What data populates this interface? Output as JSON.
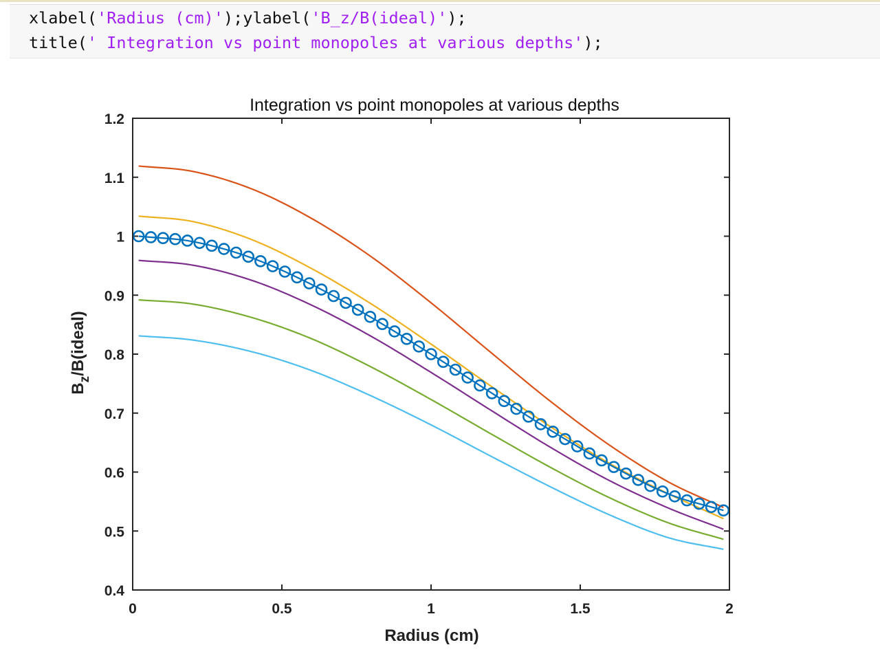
{
  "code": {
    "line1": [
      {
        "t": "xlabel(",
        "s": false
      },
      {
        "t": "'Radius (cm)'",
        "s": true
      },
      {
        "t": ");ylabel(",
        "s": false
      },
      {
        "t": "'B_z/B(ideal)'",
        "s": true
      },
      {
        "t": ");",
        "s": false
      }
    ],
    "line2": [
      {
        "t": "title(",
        "s": false
      },
      {
        "t": "' Integration vs point monopoles at various depths'",
        "s": true
      },
      {
        "t": ");",
        "s": false
      }
    ]
  },
  "colors": {
    "code_text": "#111111",
    "code_string": "#a020f0",
    "axes": "#262626"
  },
  "chart_data": {
    "type": "line",
    "title": "Integration vs point monopoles at various depths",
    "xlabel": "Radius (cm)",
    "ylabel_main": "B",
    "ylabel_sub": "z",
    "ylabel_rest": "/B(ideal)",
    "xlim": [
      0,
      2
    ],
    "ylim": [
      0.4,
      1.2
    ],
    "xticks": [
      0,
      0.5,
      1,
      1.5,
      2
    ],
    "xtick_labels": [
      "0",
      "0.5",
      "1",
      "1.5",
      "2"
    ],
    "yticks": [
      0.4,
      0.5,
      0.6,
      0.7,
      0.8,
      0.9,
      1.0,
      1.1,
      1.2
    ],
    "ytick_labels": [
      "0.4",
      "0.5",
      "0.6",
      "0.7",
      "0.8",
      "0.9",
      "1",
      "1.1",
      "1.2"
    ],
    "grid": false,
    "x": [
      0.02,
      0.2,
      0.4,
      0.6,
      0.8,
      1.0,
      1.2,
      1.4,
      1.6,
      1.8,
      1.98
    ],
    "series": [
      {
        "color": "#d95319",
        "values": [
          1.119,
          1.11,
          1.08,
          1.03,
          0.965,
          0.887,
          0.803,
          0.72,
          0.645,
          0.582,
          0.54
        ]
      },
      {
        "color": "#edb120",
        "values": [
          1.034,
          1.025,
          0.994,
          0.945,
          0.885,
          0.817,
          0.746,
          0.677,
          0.614,
          0.562,
          0.521
        ]
      },
      {
        "color": "#0072bd",
        "marker": "circle",
        "values": [
          1.0,
          0.991,
          0.963,
          0.918,
          0.862,
          0.8,
          0.735,
          0.671,
          0.612,
          0.562,
          0.535
        ]
      },
      {
        "color": "#7e2f8e",
        "values": [
          0.959,
          0.951,
          0.925,
          0.883,
          0.83,
          0.769,
          0.705,
          0.642,
          0.585,
          0.538,
          0.503
        ]
      },
      {
        "color": "#77ac30",
        "values": [
          0.892,
          0.885,
          0.862,
          0.826,
          0.778,
          0.723,
          0.665,
          0.608,
          0.556,
          0.513,
          0.486
        ]
      },
      {
        "color": "#4dbeee",
        "values": [
          0.831,
          0.824,
          0.804,
          0.772,
          0.729,
          0.68,
          0.627,
          0.575,
          0.527,
          0.488,
          0.469
        ]
      }
    ]
  }
}
